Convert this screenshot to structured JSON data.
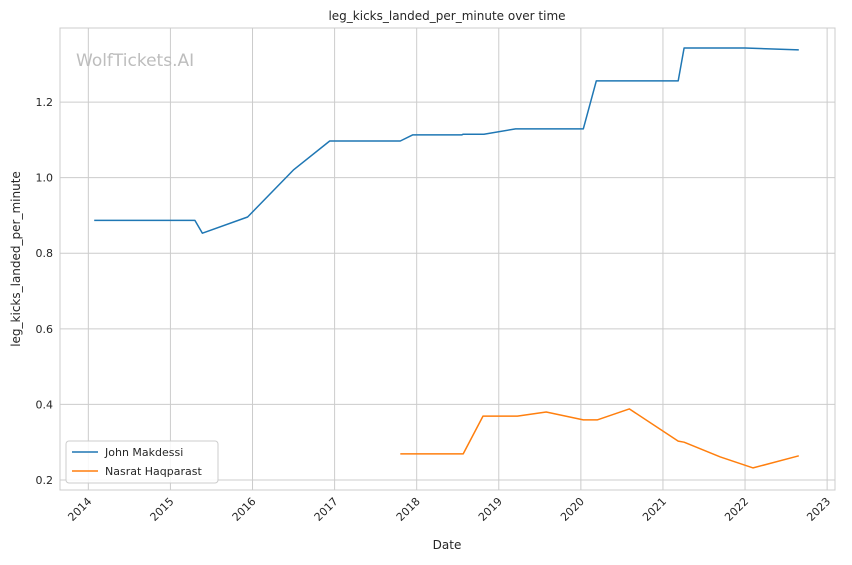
{
  "chart_data": {
    "type": "line",
    "title": "leg_kicks_landed_per_minute over time",
    "xlabel": "Date",
    "ylabel": "leg_kicks_landed_per_minute",
    "watermark": "WolfTickets.AI",
    "xlim": [
      "2013-08-28",
      "2023-02-05"
    ],
    "ylim": [
      0.1735,
      1.396
    ],
    "x_ticks": [
      "2014",
      "2015",
      "2016",
      "2017",
      "2018",
      "2019",
      "2020",
      "2021",
      "2022",
      "2023"
    ],
    "y_ticks": [
      0.2,
      0.4,
      0.6,
      0.8,
      1.0,
      1.2
    ],
    "y_tick_labels": [
      "0.2",
      "0.4",
      "0.6",
      "0.8",
      "1.0",
      "1.2"
    ],
    "grid": true,
    "legend_position": "lower-left",
    "series": [
      {
        "name": "John Makdessi",
        "color": "#1f77b4",
        "x": [
          "2014-01-27",
          "2015-04-20",
          "2015-05-23",
          "2015-12-10",
          "2016-07-01",
          "2016-12-10",
          "2017-10-20",
          "2017-12-14",
          "2018-07-20",
          "2018-07-27",
          "2018-10-27",
          "2019-03-17",
          "2020-01-12",
          "2020-03-10",
          "2021-03-10",
          "2021-04-05",
          "2022-01-01",
          "2022-08-28"
        ],
        "y": [
          0.887,
          0.887,
          0.853,
          0.896,
          1.02,
          1.097,
          1.097,
          1.113,
          1.113,
          1.115,
          1.115,
          1.129,
          1.129,
          1.256,
          1.256,
          1.343,
          1.343,
          1.338
        ]
      },
      {
        "name": "Nasrat Haqparast",
        "color": "#ff7f0e",
        "x": [
          "2017-10-20",
          "2018-07-27",
          "2018-10-23",
          "2019-03-25",
          "2019-07-31",
          "2020-01-12",
          "2020-03-14",
          "2020-08-04",
          "2021-03-10",
          "2021-04-05",
          "2021-09-13",
          "2022-02-06",
          "2022-08-28"
        ],
        "y": [
          0.269,
          0.269,
          0.369,
          0.369,
          0.38,
          0.359,
          0.359,
          0.388,
          0.303,
          0.3,
          0.261,
          0.232,
          0.264
        ]
      }
    ]
  }
}
